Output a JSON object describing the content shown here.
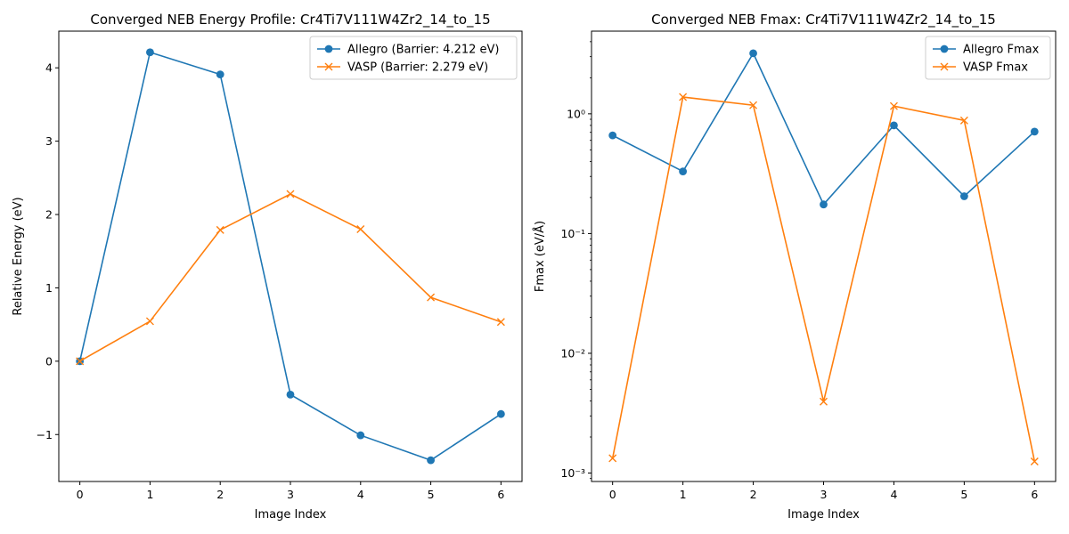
{
  "chart_data": [
    {
      "type": "line",
      "title": "Converged NEB Energy Profile: Cr4Ti7V111W4Zr2_14_to_15",
      "xlabel": "Image Index",
      "ylabel": "Relative Energy (eV)",
      "xlim": [
        -0.3,
        6.3
      ],
      "ylim": [
        -1.64,
        4.5
      ],
      "xticks": [
        "0",
        "1",
        "2",
        "3",
        "4",
        "5",
        "6"
      ],
      "yticks": [
        "−1",
        "0",
        "1",
        "2",
        "3",
        "4"
      ],
      "ytick_values": [
        -1,
        0,
        1,
        2,
        3,
        4
      ],
      "yscale": "linear",
      "grid": false,
      "legend_position": "top-right",
      "x": [
        0,
        1,
        2,
        3,
        4,
        5,
        6
      ],
      "series": [
        {
          "name": "Allegro (Barrier: 4.212 eV)",
          "values": [
            0.0,
            4.212,
            3.91,
            -0.455,
            -1.01,
            -1.35,
            -0.72
          ],
          "color": "#1f77b4",
          "marker": "circle"
        },
        {
          "name": "VASP (Barrier: 2.279 eV)",
          "values": [
            0.0,
            0.545,
            1.79,
            2.279,
            1.8,
            0.87,
            0.535
          ],
          "color": "#ff7f0e",
          "marker": "x"
        }
      ]
    },
    {
      "type": "line",
      "title": "Converged NEB Fmax: Cr4Ti7V111W4Zr2_14_to_15",
      "xlabel": "Image Index",
      "ylabel": "Fmax (eV/Å)",
      "xlim": [
        -0.3,
        6.3
      ],
      "ylim": [
        0.00085,
        4.9
      ],
      "xticks": [
        "0",
        "1",
        "2",
        "3",
        "4",
        "5",
        "6"
      ],
      "yticks": [
        "10⁻³",
        "10⁻²",
        "10⁻¹",
        "10⁰"
      ],
      "ytick_values": [
        0.001,
        0.01,
        0.1,
        1
      ],
      "yscale": "log",
      "grid": false,
      "legend_position": "top-right",
      "x": [
        0,
        1,
        2,
        3,
        4,
        5,
        6
      ],
      "series": [
        {
          "name": "Allegro Fmax",
          "values": [
            0.66,
            0.33,
            3.2,
            0.175,
            0.8,
            0.205,
            0.71
          ],
          "color": "#1f77b4",
          "marker": "circle"
        },
        {
          "name": "VASP Fmax",
          "values": [
            0.00133,
            1.38,
            1.18,
            0.00395,
            1.16,
            0.88,
            0.00125
          ],
          "color": "#ff7f0e",
          "marker": "x"
        }
      ]
    }
  ]
}
